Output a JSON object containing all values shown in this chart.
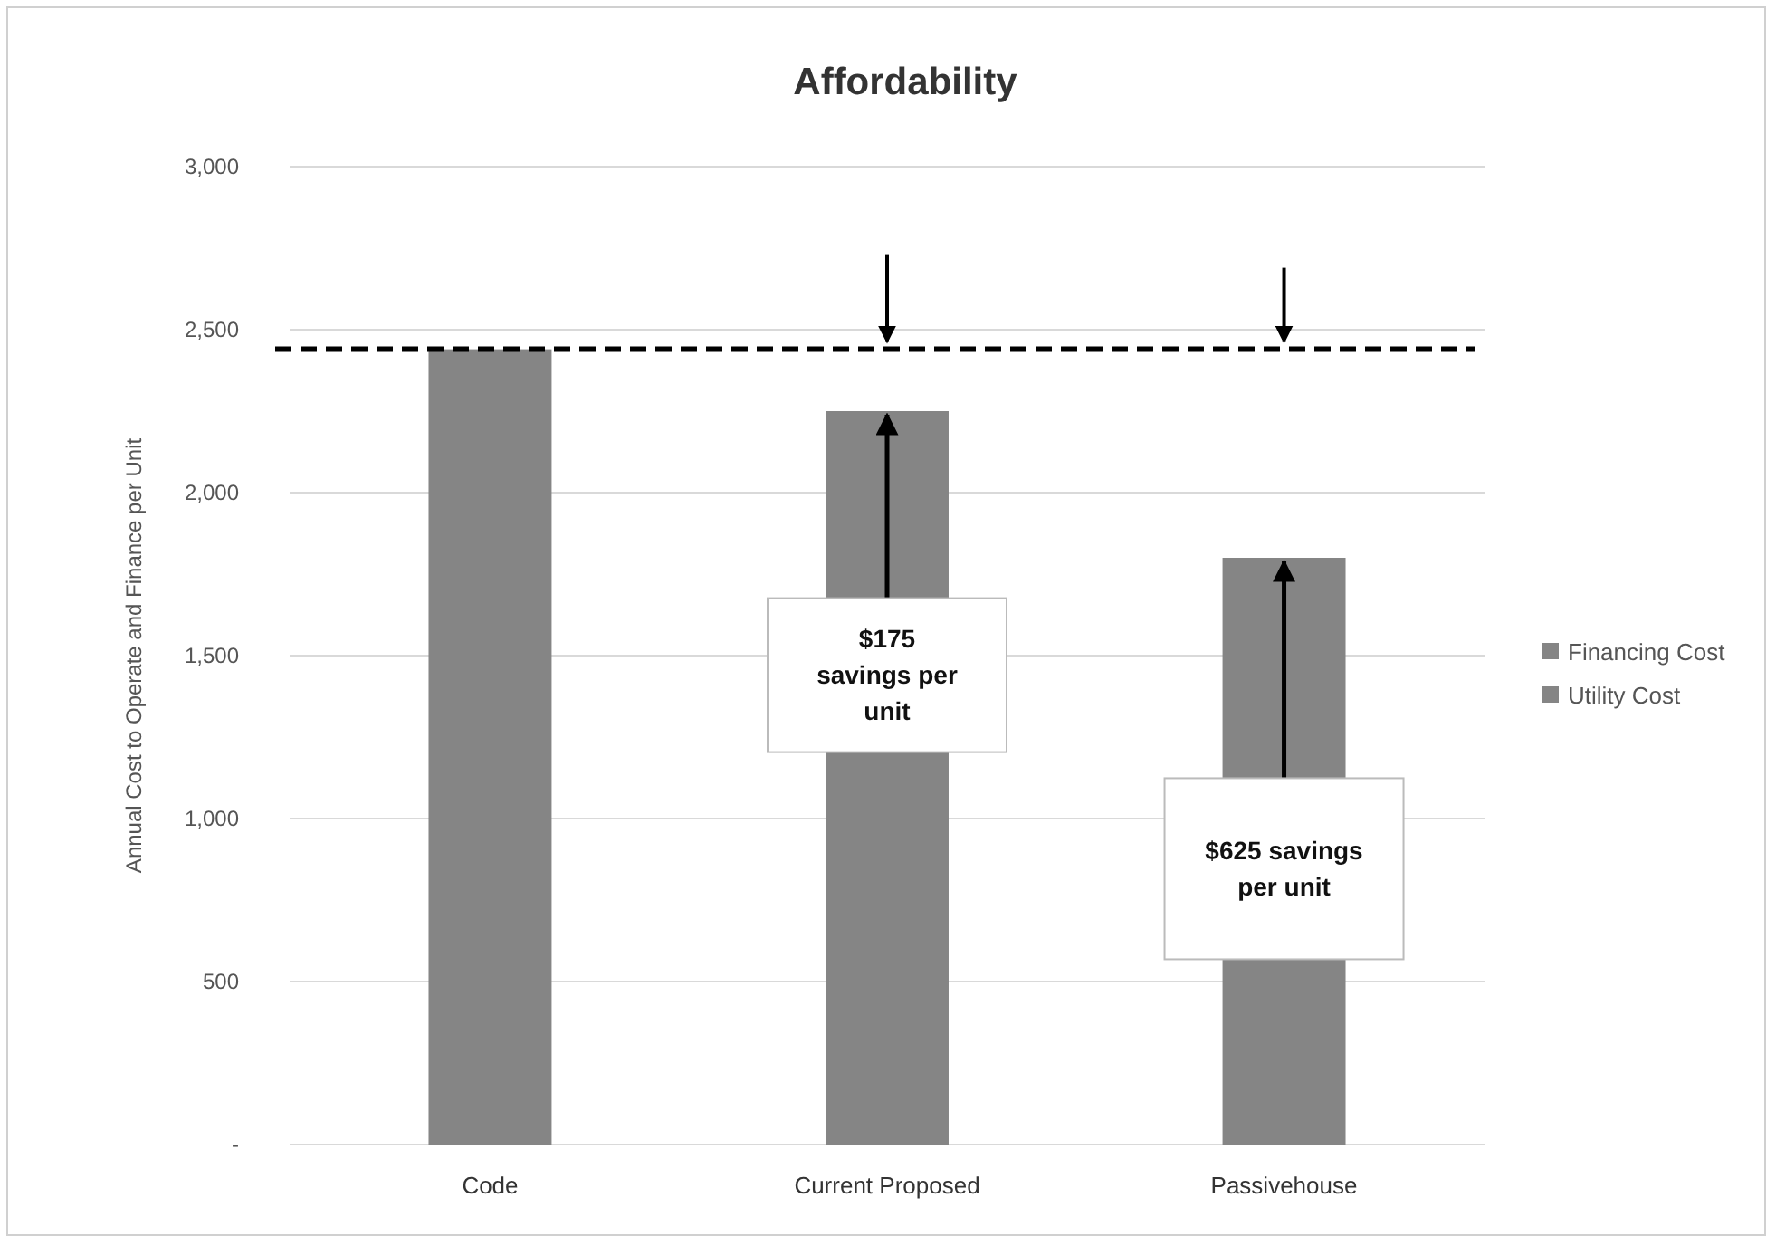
{
  "chart_data": {
    "type": "bar",
    "title": "Affordability",
    "ylabel": "Annual Cost to Operate and Finance per Unit",
    "categories": [
      "Code",
      "Current Proposed",
      "Passivehouse"
    ],
    "series": [
      {
        "name": "Financing Cost",
        "color": "#858585",
        "values": [
          null,
          null,
          null
        ]
      },
      {
        "name": "Utility Cost",
        "color": "#858585",
        "values": [
          2440,
          2250,
          1800
        ]
      }
    ],
    "ylim": [
      0,
      3000
    ],
    "yticks": [
      {
        "value": 0,
        "label": "-"
      },
      {
        "value": 500,
        "label": "500"
      },
      {
        "value": 1000,
        "label": "1,000"
      },
      {
        "value": 1500,
        "label": "1,500"
      },
      {
        "value": 2000,
        "label": "2,000"
      },
      {
        "value": 2500,
        "label": "2,500"
      },
      {
        "value": 3000,
        "label": "3,000"
      }
    ],
    "grid": "y",
    "legend": "right",
    "ref_lines": [
      {
        "axis": "y",
        "value": 2440,
        "color": "#000000",
        "line_style": "dashed"
      }
    ],
    "annotations": [
      {
        "text": "$175 savings per unit",
        "x": "Current Proposed",
        "y": 2250
      },
      "$625 savings per unit"
    ]
  }
}
